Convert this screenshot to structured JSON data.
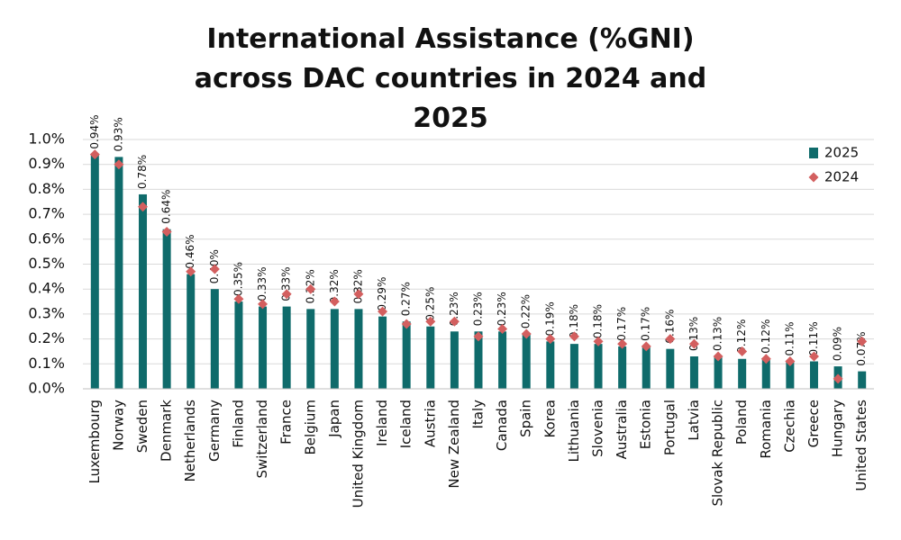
{
  "chart_data": {
    "type": "bar",
    "title": "International Assistance (%GNI) across DAC countries in 2024 and 2025",
    "categories": [
      "Luxembourg",
      "Norway",
      "Sweden",
      "Denmark",
      "Netherlands",
      "Germany",
      "Finland",
      "Switzerland",
      "France",
      "Belgium",
      "Japan",
      "United Kingdom",
      "Ireland",
      "Iceland",
      "Austria",
      "New Zealand",
      "Italy",
      "Canada",
      "Spain",
      "Korea",
      "Lithuania",
      "Slovenia",
      "Australia",
      "Estonia",
      "Portugal",
      "Latvia",
      "Slovak Republic",
      "Poland",
      "Romania",
      "Czechia",
      "Greece",
      "Hungary",
      "United States"
    ],
    "series": [
      {
        "name": "2025",
        "mark": "bar",
        "color": "#0f6b6b",
        "values": [
          0.94,
          0.93,
          0.78,
          0.64,
          0.46,
          0.4,
          0.35,
          0.33,
          0.33,
          0.32,
          0.32,
          0.32,
          0.29,
          0.27,
          0.25,
          0.23,
          0.23,
          0.23,
          0.22,
          0.19,
          0.18,
          0.18,
          0.17,
          0.17,
          0.16,
          0.13,
          0.13,
          0.12,
          0.12,
          0.11,
          0.11,
          0.09,
          0.07
        ],
        "value_labels": [
          "0.94%",
          "0.93%",
          "0.78%",
          "0.64%",
          "0.46%",
          "0.40%",
          "0.35%",
          "0.33%",
          "0.33%",
          "0.32%",
          "0.32%",
          "0.32%",
          "0.29%",
          "0.27%",
          "0.25%",
          "0.23%",
          "0.23%",
          "0.23%",
          "0.22%",
          "0.19%",
          "0.18%",
          "0.18%",
          "0.17%",
          "0.17%",
          "0.16%",
          "0.13%",
          "0.13%",
          "0.12%",
          "0.12%",
          "0.11%",
          "0.11%",
          "0.09%",
          "0.07%"
        ]
      },
      {
        "name": "2024",
        "mark": "diamond",
        "color": "#d35f5f",
        "values": [
          0.94,
          0.9,
          0.73,
          0.63,
          0.47,
          0.48,
          0.36,
          0.34,
          0.38,
          0.4,
          0.35,
          0.38,
          0.31,
          0.26,
          0.27,
          0.27,
          0.21,
          0.24,
          0.22,
          0.2,
          0.21,
          0.19,
          0.18,
          0.17,
          0.2,
          0.18,
          0.13,
          0.15,
          0.12,
          0.11,
          0.13,
          0.04,
          0.19
        ]
      }
    ],
    "ylim": [
      0,
      1.0
    ],
    "yticks": [
      {
        "value": 0,
        "label": "0.0%"
      },
      {
        "value": 0.1,
        "label": "0.1%"
      },
      {
        "value": 0.2,
        "label": "0.2%"
      },
      {
        "value": 0.3,
        "label": "0.3%"
      },
      {
        "value": 0.4,
        "label": "0.4%"
      },
      {
        "value": 0.5,
        "label": "0.5%"
      },
      {
        "value": 0.6,
        "label": "0.6%"
      },
      {
        "value": 0.7,
        "label": "0.7%"
      },
      {
        "value": 0.8,
        "label": "0.8%"
      },
      {
        "value": 0.9,
        "label": "0.9%"
      },
      {
        "value": 1.0,
        "label": "1.0%"
      }
    ],
    "grid": true,
    "legend": "upper right"
  }
}
